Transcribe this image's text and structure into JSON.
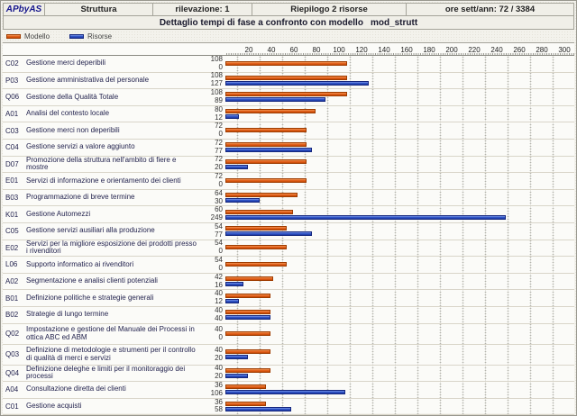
{
  "header": {
    "logo": "APbyAS",
    "cells": [
      "Struttura",
      "rilevazione: 1",
      "Riepilogo 2 risorse",
      "ore sett/ann: 72 / 3384"
    ],
    "title": "Dettaglio tempi di fase a confronto con modello",
    "title_model": "mod_strutt"
  },
  "legend": {
    "model_label": "Modello",
    "resource_label": "Risorse"
  },
  "colors": {
    "model_bar": "#d2601a",
    "resource_bar": "#2a52be",
    "logo_text": "#16168c"
  },
  "chart_data": {
    "type": "bar",
    "orientation": "horizontal",
    "title": "Dettaglio tempi di fase a confronto con modello mod_strutt",
    "legend_position": "top-left",
    "grid": true,
    "axis_max": 308,
    "axis_ticks": [
      20,
      40,
      60,
      80,
      100,
      120,
      140,
      160,
      180,
      200,
      220,
      240,
      260,
      280,
      300
    ],
    "series_names": [
      "Modello",
      "Risorse"
    ],
    "rows": [
      {
        "code": "C02",
        "label": "Gestione merci deperibili",
        "modello": 108,
        "risorse": 0
      },
      {
        "code": "P03",
        "label": "Gestione amministrativa del personale",
        "modello": 108,
        "risorse": 127
      },
      {
        "code": "Q06",
        "label": "Gestione della Qualità Totale",
        "modello": 108,
        "risorse": 89
      },
      {
        "code": "A01",
        "label": "Analisi del contesto locale",
        "modello": 80,
        "risorse": 12
      },
      {
        "code": "C03",
        "label": "Gestione merci non deperibili",
        "modello": 72,
        "risorse": 0
      },
      {
        "code": "C04",
        "label": "Gestione servizi a valore aggiunto",
        "modello": 72,
        "risorse": 77
      },
      {
        "code": "D07",
        "label": "Promozione della struttura nell'ambito di fiere e mostre",
        "modello": 72,
        "risorse": 20
      },
      {
        "code": "E01",
        "label": "Servizi di informazione e orientamento dei clienti",
        "modello": 72,
        "risorse": 0
      },
      {
        "code": "B03",
        "label": "Programmazione di breve termine",
        "modello": 64,
        "risorse": 30
      },
      {
        "code": "K01",
        "label": "Gestione Automezzi",
        "modello": 60,
        "risorse": 249
      },
      {
        "code": "C05",
        "label": "Gestione servizi ausiliari alla produzione",
        "modello": 54,
        "risorse": 77
      },
      {
        "code": "E02",
        "label": "Servizi per la migliore esposizione dei prodotti presso i rivenditori",
        "modello": 54,
        "risorse": 0
      },
      {
        "code": "L06",
        "label": "Supporto informatico ai rivenditori",
        "modello": 54,
        "risorse": 0
      },
      {
        "code": "A02",
        "label": "Segmentazione e analisi clienti potenziali",
        "modello": 42,
        "risorse": 16
      },
      {
        "code": "B01",
        "label": "Definizione politiche e strategie generali",
        "modello": 40,
        "risorse": 12
      },
      {
        "code": "B02",
        "label": "Strategie di lungo termine",
        "modello": 40,
        "risorse": 40
      },
      {
        "code": "Q02",
        "label": "Impostazione e gestione del Manuale dei Processi in ottica ABC ed ABM",
        "modello": 40,
        "risorse": 0,
        "two_line": true
      },
      {
        "code": "Q03",
        "label": "Definizione di metodologie e strumenti per il controllo di qualità di merci e servizi",
        "modello": 40,
        "risorse": 20,
        "two_line": true
      },
      {
        "code": "Q04",
        "label": "Definizione deleghe e limiti per il monitoraggio dei processi",
        "modello": 40,
        "risorse": 20
      },
      {
        "code": "A04",
        "label": "Consultazione diretta dei clienti",
        "modello": 36,
        "risorse": 106
      },
      {
        "code": "C01",
        "label": "Gestione acquisti",
        "modello": 36,
        "risorse": 58
      }
    ]
  }
}
